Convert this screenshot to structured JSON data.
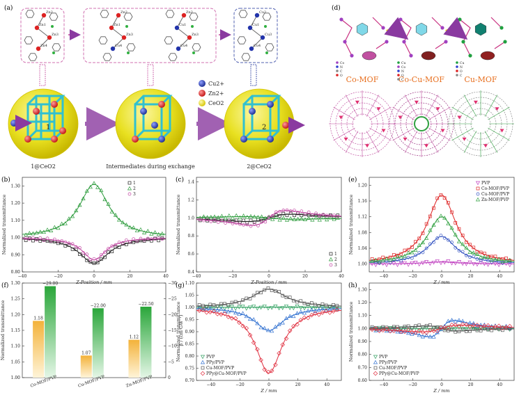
{
  "panels": {
    "a": {
      "label": "(a)",
      "legend": [
        "Cu2+",
        "Zn2+",
        "CeO2"
      ],
      "colors": {
        "cu": "#2233aa",
        "zn": "#dd2222",
        "ceo2": "#e8e020",
        "arrow": "#8a3aa0",
        "frame": "#d070b0"
      },
      "captions": [
        "1@CeO2",
        "Intermediates during exchange",
        "2@CeO2"
      ],
      "sphere_numbers": [
        "1",
        "2"
      ],
      "atom_labels_1": [
        "Zn2",
        "Zn1",
        "Zn3",
        "Zn4"
      ],
      "atom_labels_mid1": [
        "Zn2",
        "Zn1",
        "Zn3",
        "Cu4"
      ],
      "atom_labels_mid2": [
        "Zn2",
        "Cu1",
        "Zn3",
        "Cu4"
      ],
      "atom_labels_2": [
        "Cu2",
        "Cu1",
        "Cu3",
        "Cu4"
      ]
    },
    "d": {
      "label": "(d)",
      "titles": [
        "Co-MOF",
        "Co-Cu-MOF",
        "Cu-MOF"
      ],
      "title_color": "#e87020",
      "keys": [
        [
          "Co",
          "N",
          "C",
          "O"
        ],
        [
          "Cu",
          "Co",
          "N",
          "O",
          "C"
        ],
        [
          "Cu",
          "N",
          "O",
          "C"
        ]
      ]
    }
  },
  "chart_data": [
    {
      "id": "b",
      "label": "(b)",
      "type": "scatter",
      "xlabel": "Z-Position / mm",
      "ylabel": "Normalized transmittance",
      "xlim": [
        -40,
        40
      ],
      "ylim": [
        0.8,
        1.35
      ],
      "xticks": [
        -40,
        -20,
        0,
        20,
        40
      ],
      "yticks": [
        0.8,
        0.9,
        1.0,
        1.1,
        1.2,
        1.3
      ],
      "legend_position": "top-right",
      "series": [
        {
          "name": "1",
          "color": "#222222",
          "marker": "square",
          "model": "valley",
          "depth": 0.15,
          "width": 10
        },
        {
          "name": "2",
          "color": "#2a9a3a",
          "marker": "triangle",
          "model": "peak",
          "depth": 0.31,
          "width": 10
        },
        {
          "name": "3",
          "color": "#c040a0",
          "marker": "circle",
          "model": "valley",
          "depth": 0.13,
          "width": 8
        }
      ]
    },
    {
      "id": "c",
      "label": "(c)",
      "type": "scatter",
      "xlabel": "Z-Position / mm",
      "ylabel": "Normalized transmittance",
      "xlim": [
        -40,
        40
      ],
      "ylim": [
        0.4,
        1.45
      ],
      "xticks": [
        -40,
        -20,
        0,
        20,
        40
      ],
      "yticks": [
        0.4,
        0.6,
        0.8,
        1.0,
        1.2,
        1.4
      ],
      "legend_position": "bottom-right",
      "series": [
        {
          "name": "1",
          "color": "#222222",
          "marker": "square",
          "model": "dispersion",
          "amp": 0.2,
          "width": 14
        },
        {
          "name": "2",
          "color": "#2a9a3a",
          "marker": "triangle",
          "model": "dispersion",
          "amp": -0.07,
          "width": 16
        },
        {
          "name": "3",
          "color": "#c040a0",
          "marker": "circle",
          "model": "dispersion",
          "amp": 0.41,
          "width": 11
        }
      ]
    },
    {
      "id": "e",
      "label": "(e)",
      "type": "scatter",
      "xlabel": "Z / mm",
      "ylabel": "Normalized transmittance",
      "xlim": [
        -50,
        50
      ],
      "ylim": [
        0.98,
        1.22
      ],
      "xticks": [
        -40,
        -20,
        0,
        20,
        40
      ],
      "yticks": [
        1.0,
        1.04,
        1.08,
        1.12,
        1.16,
        1.2
      ],
      "legend_position": "top-right",
      "series": [
        {
          "name": "PVP",
          "color": "#c040c0",
          "marker": "triangle-down",
          "model": "peak",
          "depth": 0.005,
          "width": 14
        },
        {
          "name": "Co-MOF/PVP",
          "color": "#dd2222",
          "marker": "square",
          "model": "peak",
          "depth": 0.175,
          "width": 12
        },
        {
          "name": "Cu-MOF/PVP",
          "color": "#3050c0",
          "marker": "circle",
          "model": "peak",
          "depth": 0.07,
          "width": 12
        },
        {
          "name": "Zn-MOF/PVP",
          "color": "#30a040",
          "marker": "triangle",
          "model": "peak",
          "depth": 0.12,
          "width": 12
        }
      ]
    },
    {
      "id": "f",
      "label": "(f)",
      "type": "bar",
      "categories": [
        "Co-MOF/PVP",
        "Cu-MOF/PVP",
        "Zn-MOF/PVP"
      ],
      "series": [
        {
          "name": "Normalized transmittance",
          "values": [
            1.18,
            1.07,
            1.12
          ],
          "labels": [
            "1.18",
            "1.07",
            "1.12"
          ],
          "color": "#f0b030"
        },
        {
          "name": "β",
          "values": [
            -29.0,
            -22.0,
            -22.5
          ],
          "labels": [
            "−29.00",
            "−22.00",
            "−22.50"
          ],
          "color": "#30b040"
        }
      ],
      "ylabel_left": "Normalized transmittance",
      "ylabel_right": "β / (cm·GW⁻¹)",
      "ylim_left": [
        1.0,
        1.3
      ],
      "yticks_left": [
        1.0,
        1.05,
        1.1,
        1.15,
        1.2,
        1.25,
        1.3
      ],
      "ylim_right": [
        0,
        -30
      ],
      "yticks_right": [
        0,
        -5,
        -10,
        -15,
        -20,
        -25,
        -30
      ]
    },
    {
      "id": "g",
      "label": "(g)",
      "type": "scatter",
      "xlabel": "Z / mm",
      "ylabel": "Normalized transmittance",
      "xlim": [
        -50,
        50
      ],
      "ylim": [
        0.7,
        1.1
      ],
      "xticks": [
        -40,
        -20,
        0,
        20,
        40
      ],
      "yticks": [
        0.7,
        0.75,
        0.8,
        0.85,
        0.9,
        0.95,
        1.0,
        1.05,
        1.1
      ],
      "legend_position": "bottom-left",
      "series": [
        {
          "name": "PVP",
          "color": "#30a060",
          "marker": "triangle-down",
          "model": "peak",
          "depth": 0.0,
          "width": 14
        },
        {
          "name": "PPy/PVP",
          "color": "#3070d0",
          "marker": "triangle",
          "model": "valley",
          "depth": 0.095,
          "width": 12
        },
        {
          "name": "Cu-MOF/PVP",
          "color": "#555555",
          "marker": "square",
          "model": "peak",
          "depth": 0.075,
          "width": 14
        },
        {
          "name": "PPy@Cu-MOF/PVP",
          "color": "#e03040",
          "marker": "diamond",
          "model": "valley",
          "depth": 0.27,
          "width": 11
        }
      ]
    },
    {
      "id": "h",
      "label": "(h)",
      "type": "scatter",
      "xlabel": "Z / mm",
      "ylabel": "Normalized transmittance",
      "xlim": [
        -50,
        50
      ],
      "ylim": [
        0.6,
        1.35
      ],
      "xticks": [
        -40,
        -20,
        0,
        20,
        40
      ],
      "yticks": [
        0.6,
        0.7,
        0.8,
        0.9,
        1.0,
        1.1,
        1.2,
        1.3
      ],
      "legend_position": "bottom-left",
      "series": [
        {
          "name": "PVP",
          "color": "#30a060",
          "marker": "triangle-down",
          "model": "dispersion",
          "amp": 0.01,
          "width": 14
        },
        {
          "name": "PPy/PVP",
          "color": "#3070d0",
          "marker": "triangle",
          "model": "dispersion",
          "amp": 0.31,
          "width": 10
        },
        {
          "name": "Cu-MOF/PVP",
          "color": "#555555",
          "marker": "square",
          "model": "dispersion",
          "amp": -0.1,
          "width": 12
        },
        {
          "name": "PPy@Cu-MOF/PVP",
          "color": "#e03040",
          "marker": "diamond",
          "model": "dispersion",
          "amp": 0.13,
          "width": 16
        }
      ]
    }
  ]
}
